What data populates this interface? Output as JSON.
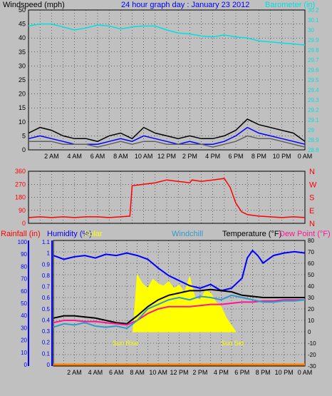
{
  "chart_data": [
    {
      "type": "line",
      "title": "24 hour graph day : January 23 2012",
      "ylabel_left": "Windspeed (mph)",
      "ylabel_right": "Barometer (in)",
      "x_ticks": [
        "2 AM",
        "4 AM",
        "6 AM",
        "8 AM",
        "10 AM",
        "12 PM",
        "2 PM",
        "4 PM",
        "6 PM",
        "8 PM",
        "10 PM",
        "0 AM"
      ],
      "y_ticks_left": [
        "0",
        "5",
        "10",
        "15",
        "20",
        "25",
        "30",
        "35",
        "40",
        "45",
        "50"
      ],
      "y_ticks_right": [
        "28.8",
        "28.9",
        "29",
        "29.1",
        "29.2",
        "29.3",
        "29.4",
        "29.5",
        "29.6",
        "29.7",
        "29.8",
        "29.9",
        "30",
        "30.1",
        "30.2"
      ],
      "ylim_left": [
        0,
        50
      ],
      "ylim_right": [
        28.8,
        30.2
      ],
      "colors": {
        "windgust": "#000000",
        "windspeed": "#0000ff",
        "windavg": "#606060",
        "barometer": "#00e0e0"
      },
      "series": [
        {
          "key": "barometer",
          "axis": "right",
          "hours": [
            0,
            1,
            2,
            3,
            4,
            5,
            6,
            7,
            8,
            9,
            10,
            11,
            12,
            13,
            14,
            15,
            16,
            17,
            18,
            19,
            20,
            21,
            22,
            23,
            24
          ],
          "values": [
            30.04,
            30.06,
            30.06,
            30.03,
            30.0,
            30.02,
            30.05,
            30.04,
            30.01,
            30.03,
            30.04,
            30.04,
            30.0,
            29.97,
            29.96,
            29.94,
            29.93,
            29.95,
            29.93,
            29.92,
            29.89,
            29.88,
            29.87,
            29.86,
            29.85
          ]
        },
        {
          "key": "windgust",
          "axis": "left",
          "hours": [
            0,
            1,
            2,
            3,
            4,
            5,
            6,
            7,
            8,
            9,
            10,
            11,
            12,
            13,
            14,
            15,
            16,
            17,
            18,
            19,
            20,
            21,
            22,
            23,
            24
          ],
          "values": [
            6,
            8,
            7,
            5,
            4,
            4,
            3,
            5,
            6,
            4,
            8,
            6,
            5,
            4,
            5,
            4,
            4,
            5,
            7,
            11,
            9,
            8,
            7,
            6,
            3
          ]
        },
        {
          "key": "windspeed",
          "axis": "left",
          "hours": [
            0,
            1,
            2,
            3,
            4,
            5,
            6,
            7,
            8,
            9,
            10,
            11,
            12,
            13,
            14,
            15,
            16,
            17,
            18,
            19,
            20,
            21,
            22,
            23,
            24
          ],
          "values": [
            4,
            5,
            4,
            3,
            2,
            2,
            2,
            3,
            4,
            3,
            5,
            4,
            3,
            2,
            3,
            2,
            2,
            3,
            5,
            8,
            6,
            5,
            4,
            3,
            2
          ]
        },
        {
          "key": "windavg",
          "axis": "left",
          "hours": [
            0,
            1,
            2,
            3,
            4,
            5,
            6,
            7,
            8,
            9,
            10,
            11,
            12,
            13,
            14,
            15,
            16,
            17,
            18,
            19,
            20,
            21,
            22,
            23,
            24
          ],
          "values": [
            3,
            3,
            3,
            2,
            2,
            2,
            1,
            2,
            3,
            2,
            3,
            3,
            2,
            2,
            2,
            2,
            1,
            2,
            3,
            5,
            4,
            4,
            3,
            2,
            1
          ]
        }
      ]
    },
    {
      "type": "line",
      "y_ticks_left": [
        "0",
        "90",
        "180",
        "270",
        "360"
      ],
      "ylim": [
        0,
        360
      ],
      "direction_labels": [
        "N",
        "W",
        "S",
        "E",
        "N"
      ],
      "colors": {
        "direction": "#ff0000",
        "labels": "#ff0000"
      },
      "series": [
        {
          "key": "wind_direction",
          "hours": [
            0,
            1,
            2,
            3,
            4,
            5,
            6,
            7,
            8,
            8.8,
            9,
            10,
            11,
            12,
            13,
            14,
            14.2,
            15,
            16,
            17,
            17.5,
            18,
            18.5,
            19,
            20,
            21,
            22,
            23,
            24
          ],
          "values": [
            40,
            45,
            40,
            45,
            40,
            45,
            45,
            40,
            45,
            50,
            260,
            270,
            280,
            300,
            290,
            280,
            300,
            290,
            300,
            310,
            250,
            140,
            80,
            60,
            50,
            45,
            40,
            45,
            40
          ]
        }
      ]
    },
    {
      "type": "line",
      "labels": {
        "rainfall": "Rainfall (in)",
        "humidity": "Humidity (%)",
        "solar": "Solar",
        "windchill": "Windchill",
        "temperature": "Temperature (°F)",
        "dewpoint": "Dew Point (°F)"
      },
      "annotations": {
        "sunrise": "Sun Rise",
        "sunset": "Sun Set"
      },
      "x_ticks": [
        "2 AM",
        "4 AM",
        "6 AM",
        "8 AM",
        "10 AM",
        "12 PM",
        "2 PM",
        "4 PM",
        "6 PM",
        "8 PM",
        "10 PM",
        "0 AM"
      ],
      "y_ticks_rain": [
        "0",
        "10",
        "20",
        "30",
        "40",
        "50",
        "60",
        "70",
        "80",
        "90",
        "100"
      ],
      "y_ticks_humidity": [
        "0",
        "0.1",
        "0.2",
        "0.3",
        "0.4",
        "0.5",
        "0.6",
        "0.7",
        "0.8",
        "0.9",
        "1",
        "1.1"
      ],
      "y_ticks_temp": [
        "-30",
        "-20",
        "-10",
        "0",
        "10",
        "20",
        "30",
        "40",
        "50",
        "60",
        "70",
        "80"
      ],
      "ylim_temp": [
        -30,
        80
      ],
      "ylim_humidity": [
        0,
        100
      ],
      "colors": {
        "rainfall": "#ff0000",
        "humidity": "#0000ff",
        "solar": "#ffff00",
        "windchill": "#3399cc",
        "temperature": "#000000",
        "dewpoint": "#ff1493",
        "rainbar": "#ff8000"
      },
      "series": [
        {
          "key": "humidity",
          "hours": [
            0,
            1,
            2,
            3,
            4,
            5,
            6,
            7,
            8,
            9,
            10,
            11,
            12,
            13,
            14,
            15,
            16,
            17,
            18,
            18.5,
            19,
            19.5,
            20,
            20.5,
            21,
            22,
            23,
            24
          ],
          "values": [
            88,
            85,
            87,
            88,
            86,
            89,
            88,
            90,
            88,
            85,
            78,
            72,
            68,
            64,
            62,
            65,
            60,
            62,
            70,
            86,
            92,
            88,
            82,
            85,
            88,
            90,
            91,
            90
          ]
        },
        {
          "key": "temperature",
          "hours": [
            0,
            1,
            2,
            3,
            4,
            5,
            6,
            7,
            8,
            9,
            10,
            11,
            12,
            13,
            14,
            15,
            16,
            17,
            18,
            19,
            20,
            21,
            22,
            23,
            24
          ],
          "values": [
            12,
            14,
            14,
            13,
            12,
            10,
            8,
            7,
            14,
            22,
            28,
            32,
            34,
            36,
            36,
            37,
            36,
            35,
            32,
            31,
            30,
            30,
            30,
            30,
            30
          ]
        },
        {
          "key": "dewpoint",
          "hours": [
            0,
            1,
            2,
            3,
            4,
            5,
            6,
            7,
            8,
            9,
            10,
            11,
            12,
            13,
            14,
            15,
            16,
            17,
            18,
            19,
            20,
            21,
            22,
            23,
            24
          ],
          "values": [
            8,
            10,
            10,
            9,
            9,
            8,
            7,
            6,
            10,
            16,
            20,
            22,
            22,
            22,
            23,
            24,
            24,
            25,
            26,
            26,
            27,
            27,
            28,
            28,
            28
          ]
        },
        {
          "key": "windchill",
          "hours": [
            0,
            1,
            2,
            3,
            4,
            5,
            6,
            7,
            8,
            9,
            10,
            11,
            12,
            13,
            14,
            15,
            16,
            17,
            18,
            19,
            20,
            21,
            22,
            23,
            24
          ],
          "values": [
            4,
            7,
            6,
            8,
            5,
            4,
            5,
            3,
            10,
            20,
            24,
            28,
            30,
            28,
            31,
            30,
            28,
            32,
            30,
            28,
            26,
            26,
            27,
            27,
            28
          ]
        },
        {
          "key": "solar",
          "hours": [
            7.6,
            8,
            8.5,
            9,
            9.5,
            10,
            10.5,
            11,
            11.5,
            12,
            12.5,
            13,
            13.5,
            14,
            14.5,
            15,
            15.5,
            16,
            16.5,
            17.4
          ],
          "values": [
            0,
            50,
            42,
            38,
            46,
            42,
            40,
            44,
            38,
            41,
            34,
            48,
            30,
            28,
            36,
            34,
            26,
            22,
            12,
            0
          ]
        }
      ]
    }
  ]
}
